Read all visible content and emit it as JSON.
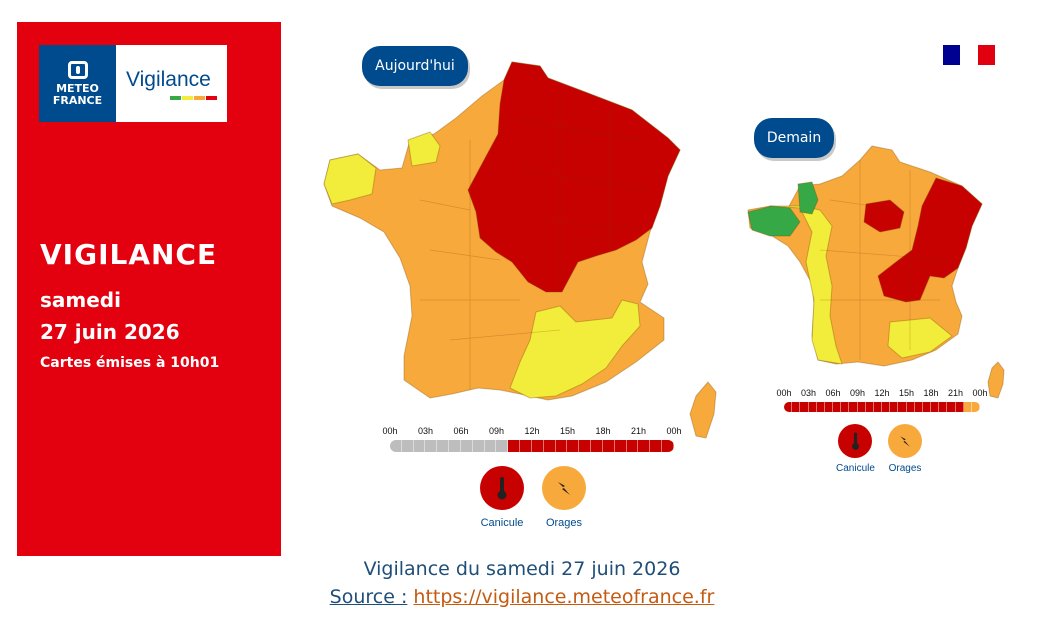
{
  "colors": {
    "red_panel": "#e3000f",
    "meteo_blue": "#004b8d",
    "level_red": "#c70000",
    "level_orange": "#f7a93c",
    "level_yellow": "#f2ec3a",
    "level_green": "#36a845",
    "timeline_grey": "#bdbdbd",
    "caption_blue": "#1f4e79",
    "link_orange": "#c55a11"
  },
  "brand": {
    "logo_line1": "METEO",
    "logo_line2": "FRANCE",
    "logo_word": "Vigilance",
    "stripe_colors": [
      "#36a845",
      "#f2ec3a",
      "#f7a93c",
      "#e3000f"
    ]
  },
  "panel": {
    "heading": "VIGILANCE",
    "day": "samedi",
    "date": "27 juin 2026",
    "issued": "Cartes émises à 10h01"
  },
  "flag_colors": [
    "#000091",
    "#ffffff",
    "#e1000f"
  ],
  "today": {
    "label": "Aujourd'hui",
    "timeline": {
      "ticks": [
        "00h",
        "03h",
        "06h",
        "09h",
        "12h",
        "15h",
        "18h",
        "21h",
        "00h"
      ],
      "hour_levels": [
        "grey",
        "grey",
        "grey",
        "grey",
        "grey",
        "grey",
        "grey",
        "grey",
        "grey",
        "grey",
        "red",
        "red",
        "red",
        "red",
        "red",
        "red",
        "red",
        "red",
        "red",
        "red",
        "red",
        "red",
        "red",
        "red"
      ]
    },
    "risks": [
      {
        "name": "Canicule",
        "icon": "thermometer-icon",
        "level": "red"
      },
      {
        "name": "Orages",
        "icon": "lightning-icon",
        "level": "orange"
      }
    ]
  },
  "tomorrow": {
    "label": "Demain",
    "timeline": {
      "ticks": [
        "00h",
        "03h",
        "06h",
        "09h",
        "12h",
        "15h",
        "18h",
        "21h",
        "00h"
      ],
      "hour_levels": [
        "red",
        "red",
        "red",
        "red",
        "red",
        "red",
        "red",
        "red",
        "red",
        "red",
        "red",
        "red",
        "red",
        "red",
        "red",
        "red",
        "red",
        "red",
        "red",
        "red",
        "red",
        "red",
        "orange",
        "orange"
      ]
    },
    "risks": [
      {
        "name": "Canicule",
        "icon": "thermometer-icon",
        "level": "red"
      },
      {
        "name": "Orages",
        "icon": "lightning-icon",
        "level": "orange"
      }
    ]
  },
  "caption": {
    "line1": "Vigilance du samedi 27 juin 2026",
    "source_label": "Source :",
    "source_url": "https://vigilance.meteofrance.fr"
  }
}
